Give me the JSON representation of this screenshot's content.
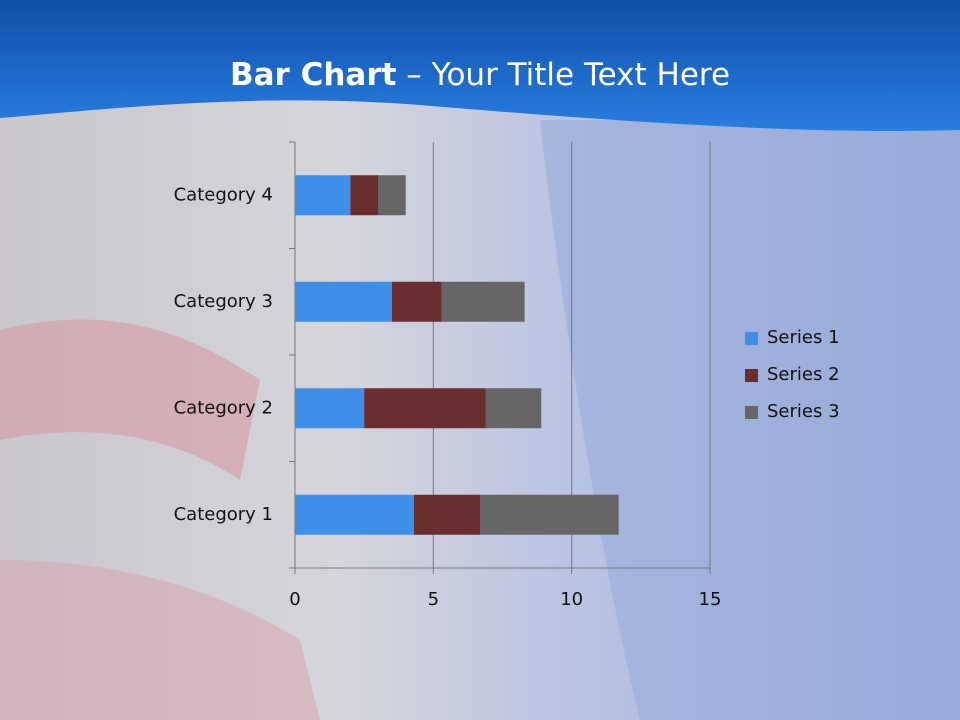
{
  "chart_data": {
    "type": "stacked_bar_horizontal",
    "title": {
      "bold": "Bar Chart",
      "rest": "– Your Title Text Here"
    },
    "categories": [
      "Category 1",
      "Category 2",
      "Category 3",
      "Category 4"
    ],
    "series": [
      {
        "name": "Series 1",
        "color": "#3d8fe8",
        "values": [
          4.3,
          2.5,
          3.5,
          2
        ]
      },
      {
        "name": "Series 2",
        "color": "#6a2e2e",
        "values": [
          2.4,
          4.4,
          1.8,
          1
        ]
      },
      {
        "name": "Series 3",
        "color": "#666666",
        "values": [
          5,
          2,
          3,
          1
        ]
      }
    ],
    "xlim": [
      0,
      15
    ],
    "xticks": [
      0,
      5,
      10,
      15
    ],
    "grid": true,
    "legend": "right"
  }
}
